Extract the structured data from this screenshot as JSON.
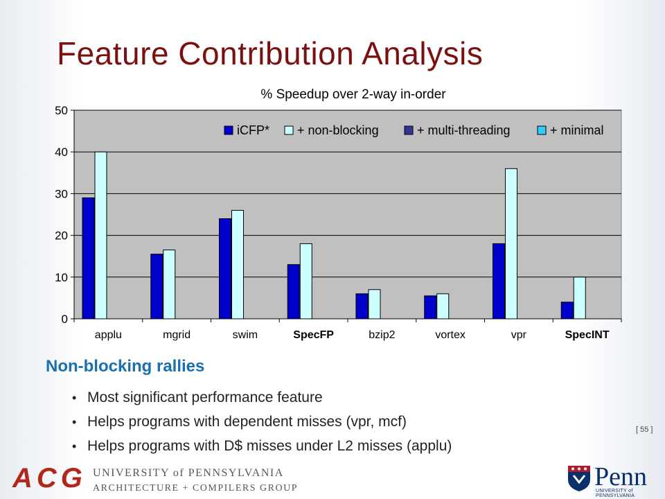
{
  "slide": {
    "title": "Feature Contribution Analysis",
    "heading": "Non-blocking rallies",
    "bullets": [
      "Most significant performance feature",
      "Helps programs with dependent misses (vpr, mcf)",
      "Helps programs with D$ misses under L2 misses (applu)"
    ],
    "page_number": "[ 55 ]"
  },
  "footer": {
    "acg_logo": "ACG",
    "university": "UNIVERSITY of PENNSYLVANIA",
    "group": "ARCHITECTURE + COMPILERS GROUP",
    "penn_logo": "Penn",
    "penn_sub": "UNIVERSITY of PENNSYLVANIA"
  },
  "colors": {
    "title": "#7a1010",
    "heading": "#1a6fb0",
    "plot_bg": "#c0c0c0",
    "icfp": "#0000cc",
    "non_blocking": "#ccffff",
    "multi_threading": "#333399",
    "minimal": "#33ccff"
  },
  "chart_data": {
    "type": "bar",
    "title": "% Speedup over 2-way in-order",
    "xlabel": "",
    "ylabel": "",
    "ylim": [
      0,
      50
    ],
    "yticks": [
      0,
      10,
      20,
      30,
      40,
      50
    ],
    "grid": true,
    "legend_position": "top-right",
    "categories": [
      "applu",
      "mgrid",
      "swim",
      "SpecFP",
      "bzip2",
      "vortex",
      "vpr",
      "SpecINT"
    ],
    "bold_categories": [
      "SpecFP",
      "SpecINT"
    ],
    "series": [
      {
        "name": "iCFP*",
        "color": "#0000cc",
        "values": [
          29,
          15.5,
          24,
          13,
          6,
          5.5,
          18,
          4
        ]
      },
      {
        "name": "+ non-blocking",
        "color": "#ccffff",
        "values": [
          40,
          16.5,
          26,
          18,
          7,
          6,
          36,
          10
        ]
      },
      {
        "name": "+ multi-threading",
        "color": "#333399",
        "values": [
          null,
          null,
          null,
          null,
          null,
          null,
          null,
          null
        ]
      },
      {
        "name": "+ minimal",
        "color": "#33ccff",
        "values": [
          null,
          null,
          null,
          null,
          null,
          null,
          null,
          null
        ]
      }
    ]
  }
}
